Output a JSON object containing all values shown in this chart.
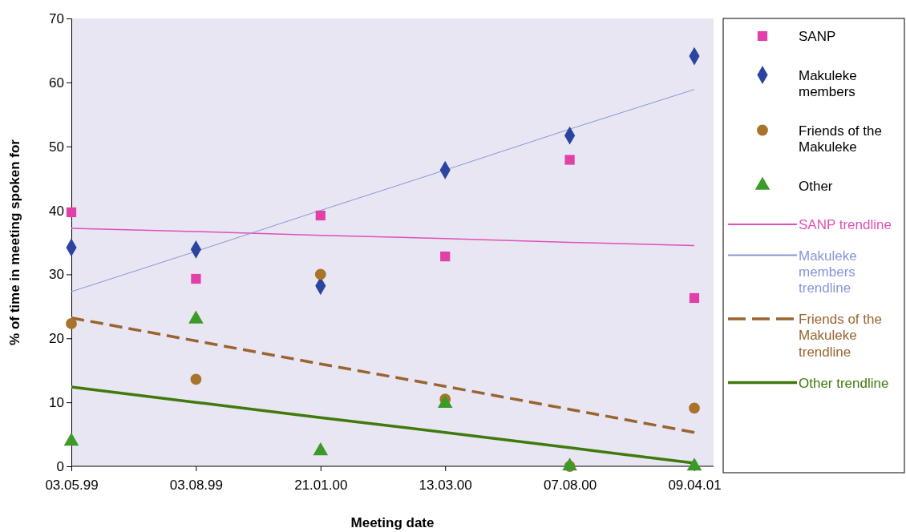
{
  "chart_data": {
    "type": "scatter",
    "xlabel": "Meeting date",
    "ylabel": "% of time in meeting spoken for",
    "categories": [
      "03.05.99",
      "03.08.99",
      "21.01.00",
      "13.03.00",
      "07.08.00",
      "09.04.01"
    ],
    "ylim": [
      0,
      70
    ],
    "yticks": [
      0,
      10,
      20,
      30,
      40,
      50,
      60,
      70
    ],
    "grid": false,
    "legend": "right",
    "series": [
      {
        "name": "SANP",
        "marker": "square",
        "color": "#e040a8",
        "values": [
          39.7,
          29.3,
          39.2,
          32.8,
          47.9,
          26.3
        ]
      },
      {
        "name": "Makuleke members",
        "marker": "diamond",
        "color": "#2a44a0",
        "values": [
          34.2,
          33.9,
          28.2,
          46.3,
          51.7,
          64.1
        ]
      },
      {
        "name": "Friends of the Makuleke",
        "marker": "circle",
        "color": "#a8742c",
        "values": [
          22.3,
          13.6,
          30.0,
          10.5,
          0,
          9.1
        ]
      },
      {
        "name": "Other",
        "marker": "triangle",
        "color": "#3c9a28",
        "values": [
          3.9,
          23.0,
          2.4,
          9.8,
          0,
          0
        ]
      },
      {
        "name": "SANP trendline",
        "type": "line",
        "line_style": "solid",
        "color": "#e050b8",
        "values": [
          37.2,
          36.7,
          36.1,
          35.6,
          35.0,
          34.5
        ]
      },
      {
        "name": "Makuleke members trendline",
        "type": "line",
        "line_style": "solid",
        "color": "#8896d8",
        "values": [
          27.3,
          33.6,
          40.0,
          46.3,
          52.7,
          58.9
        ]
      },
      {
        "name": "Friends of the Makuleke trendline",
        "type": "line",
        "line_style": "dashed",
        "color": "#9a6430",
        "values": [
          23.2,
          19.6,
          16.0,
          12.5,
          8.9,
          5.3
        ]
      },
      {
        "name": "Other trendline",
        "type": "line",
        "line_style": "solid",
        "color": "#3f7a0c",
        "values": [
          12.4,
          10.0,
          7.6,
          5.3,
          2.9,
          0.5
        ]
      }
    ]
  }
}
